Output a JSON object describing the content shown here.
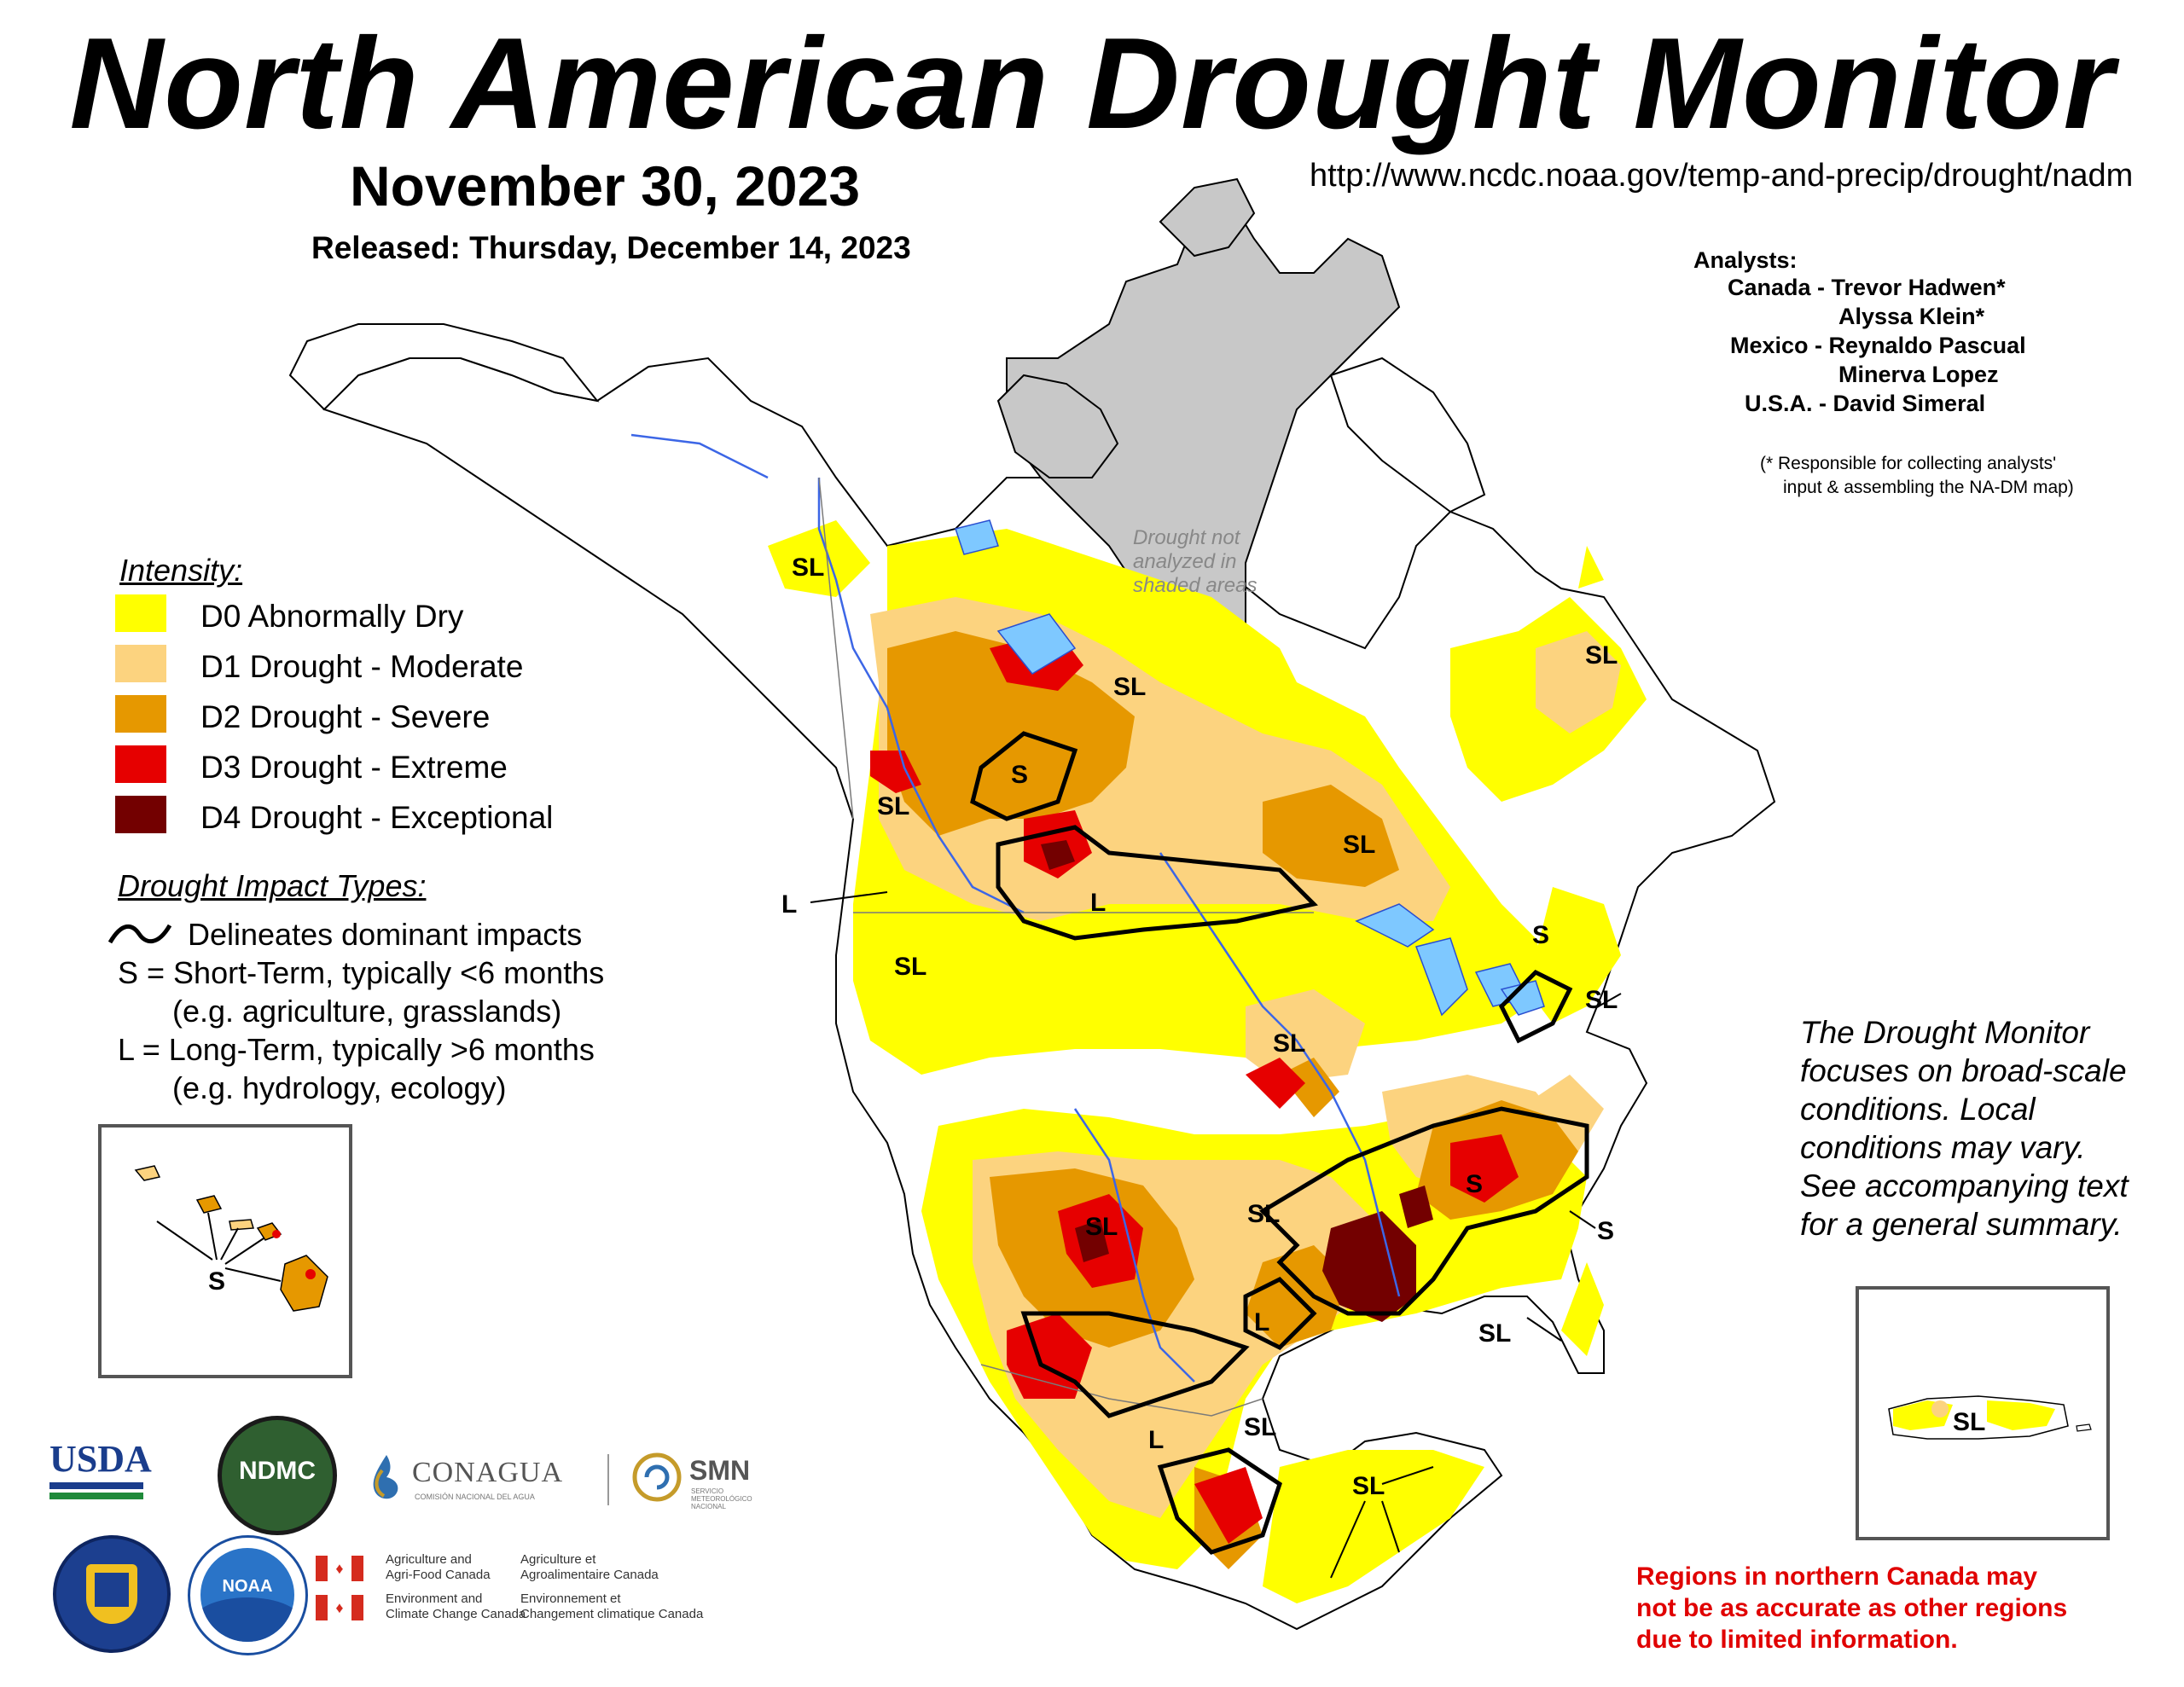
{
  "title": "North American Drought Monitor",
  "date": "November 30, 2023",
  "released": "Released: Thursday, December 14, 2023",
  "url": "http://www.ncdc.noaa.gov/temp-and-precip/drought/nadm",
  "analysts": {
    "header": "Analysts:",
    "lines": [
      "Canada - Trevor Hadwen*",
      "Alyssa Klein*",
      "Mexico - Reynaldo Pascual",
      "Minerva Lopez",
      "U.S.A. - David Simeral"
    ],
    "note_line1": "(* Responsible for collecting analysts'",
    "note_line2": "input & assembling the NA-DM map)"
  },
  "not_analyzed": [
    "Drought not",
    "analyzed in",
    "shaded areas"
  ],
  "legend": {
    "intensity_title": "Intensity:",
    "items": [
      {
        "label": "D0 Abnormally Dry",
        "color": "#ffff00"
      },
      {
        "label": "D1 Drought - Moderate",
        "color": "#fcd37f"
      },
      {
        "label": "D2 Drought - Severe",
        "color": "#e69800"
      },
      {
        "label": "D3 Drought - Extreme",
        "color": "#e60000"
      },
      {
        "label": "D4 Drought - Exceptional",
        "color": "#730000"
      }
    ],
    "impact_title": "Drought Impact Types:",
    "impact_lines": [
      "Delineates dominant impacts",
      "S = Short-Term, typically <6 months",
      "(e.g. agriculture, grasslands)",
      "L = Long-Term, typically >6 months",
      "(e.g. hydrology, ecology)"
    ]
  },
  "focus_text": [
    "The Drought Monitor",
    "focuses on broad-scale",
    "conditions.  Local",
    "conditions may vary.",
    "See accompanying text",
    "for a general summary."
  ],
  "warning_text": [
    "Regions in northern Canada may",
    "not be as accurate as other regions",
    "due to limited information."
  ],
  "map_labels": {
    "sl_1": "SL",
    "sl_2": "SL",
    "sl_3": "SL",
    "sl_4": "SL",
    "sl_5": "SL",
    "sl_6": "SL",
    "sl_7": "SL",
    "sl_8": "SL",
    "sl_9": "SL",
    "sl_10": "SL",
    "sl_11": "SL",
    "sl_12": "SL",
    "sl_13": "SL",
    "sl_pr": "SL",
    "s_1": "S",
    "s_2": "S",
    "s_3": "S",
    "s_4": "S",
    "s_hi": "S",
    "l_1": "L",
    "l_2": "L",
    "l_3": "L",
    "l_4": "L"
  },
  "logos": {
    "usda": "USDA",
    "ndmc": "NDMC",
    "conagua": "CONAGUA",
    "conagua_sub": "COMISIÓN NACIONAL DEL AGUA",
    "smn": "SMN",
    "smn_sub1": "SERVICIO",
    "smn_sub2": "METEOROLÓGICO",
    "smn_sub3": "NACIONAL",
    "noaa": "NOAA",
    "canada_1a": "Agriculture and",
    "canada_1b": "Agri-Food Canada",
    "canada_1c": "Agriculture et",
    "canada_1d": "Agroalimentaire Canada",
    "canada_2a": "Environment and",
    "canada_2b": "Climate Change Canada",
    "canada_2c": "Environnement et",
    "canada_2d": "Changement climatique Canada"
  }
}
